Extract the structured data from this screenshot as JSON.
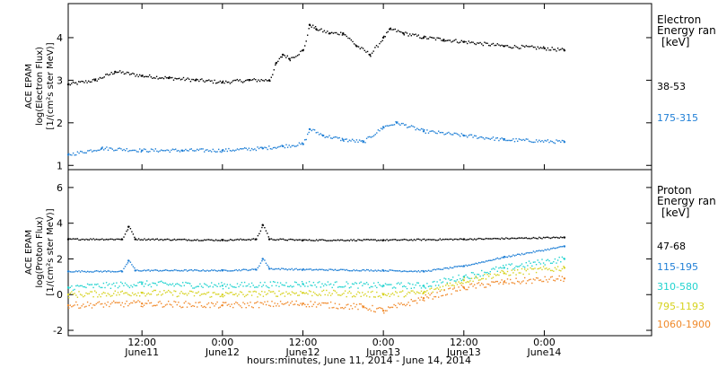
{
  "time_axis": {
    "ticks": [
      {
        "time": "12:00",
        "date": "June11"
      },
      {
        "time": "0:00",
        "date": "June12"
      },
      {
        "time": "12:00",
        "date": "June12"
      },
      {
        "time": "0:00",
        "date": "June13"
      },
      {
        "time": "12:00",
        "date": "June13"
      },
      {
        "time": "0:00",
        "date": "June14"
      }
    ],
    "label": "hours:minutes, June 11, 2014 - June 14, 2014"
  },
  "panels": {
    "electron": {
      "ylabel_lines": [
        "ACE EPAM",
        "log(Electron Flux)",
        "[1/(cm²s ster MeV)]"
      ],
      "y_ticks": [
        "4",
        "3",
        "2",
        "1"
      ],
      "legend_title_lines": [
        "Electron",
        "Energy ran",
        "[keV]"
      ],
      "channels": [
        {
          "label": "38-53",
          "color": "#000000"
        },
        {
          "label": "175-315",
          "color": "#1f7fd6"
        }
      ]
    },
    "proton": {
      "ylabel_lines": [
        "ACE EPAM",
        "log(Proton Flux)",
        "[1/(cm²s ster MeV)]"
      ],
      "y_ticks": [
        "6",
        "4",
        "2",
        "0",
        "-2"
      ],
      "legend_title_lines": [
        "Proton",
        "Energy ran",
        "[keV]"
      ],
      "channels": [
        {
          "label": "47-68",
          "color": "#000000"
        },
        {
          "label": "115-195",
          "color": "#1f7fd6"
        },
        {
          "label": "310-580",
          "color": "#22d3cf"
        },
        {
          "label": "795-1193",
          "color": "#d6d21e"
        },
        {
          "label": "1060-1900",
          "color": "#f0892a"
        }
      ]
    }
  },
  "chart_data": [
    {
      "type": "scatter",
      "ylabel": "ACE EPAM log(Electron Flux) [1/(cm²s ster MeV)]",
      "xlabel": "hours:minutes, June 11, 2014 - June 14, 2014",
      "xlim": [
        "2014-06-11T01:00",
        "2014-06-14T16:00"
      ],
      "ylim": [
        0.9,
        4.8
      ],
      "grid": false,
      "legend_position": "right",
      "series": [
        {
          "name": "38-53",
          "color": "#000000",
          "x": [
            "2014-06-11T01:00",
            "2014-06-11T05:00",
            "2014-06-11T08:00",
            "2014-06-11T12:00",
            "2014-06-11T16:00",
            "2014-06-11T20:00",
            "2014-06-12T00:00",
            "2014-06-12T04:00",
            "2014-06-12T07:00",
            "2014-06-12T08:00",
            "2014-06-12T09:00",
            "2014-06-12T10:00",
            "2014-06-12T12:00",
            "2014-06-12T13:00",
            "2014-06-12T14:00",
            "2014-06-12T16:00",
            "2014-06-12T18:00",
            "2014-06-12T20:00",
            "2014-06-12T22:00",
            "2014-06-13T00:00",
            "2014-06-13T01:00",
            "2014-06-13T03:00",
            "2014-06-13T06:00",
            "2014-06-13T09:00",
            "2014-06-13T12:00",
            "2014-06-13T18:00",
            "2014-06-14T00:00",
            "2014-06-14T03:00"
          ],
          "y": [
            2.9,
            3.0,
            3.2,
            3.1,
            3.05,
            3.0,
            2.95,
            3.0,
            3.0,
            3.4,
            3.6,
            3.5,
            3.7,
            4.3,
            4.2,
            4.1,
            4.1,
            3.8,
            3.6,
            4.0,
            4.2,
            4.1,
            4.0,
            3.95,
            3.9,
            3.8,
            3.75,
            3.7
          ]
        },
        {
          "name": "175-315",
          "color": "#1f7fd6",
          "x": [
            "2014-06-11T01:00",
            "2014-06-11T06:00",
            "2014-06-11T12:00",
            "2014-06-11T18:00",
            "2014-06-12T00:00",
            "2014-06-12T06:00",
            "2014-06-12T09:00",
            "2014-06-12T12:00",
            "2014-06-12T13:00",
            "2014-06-12T15:00",
            "2014-06-12T18:00",
            "2014-06-12T21:00",
            "2014-06-13T00:00",
            "2014-06-13T02:00",
            "2014-06-13T06:00",
            "2014-06-13T12:00",
            "2014-06-13T18:00",
            "2014-06-14T03:00"
          ],
          "y": [
            1.25,
            1.4,
            1.35,
            1.35,
            1.35,
            1.4,
            1.45,
            1.5,
            1.85,
            1.7,
            1.6,
            1.55,
            1.9,
            2.0,
            1.8,
            1.7,
            1.6,
            1.55
          ]
        }
      ]
    },
    {
      "type": "scatter",
      "ylabel": "ACE EPAM log(Proton Flux) [1/(cm²s ster MeV)]",
      "xlabel": "hours:minutes, June 11, 2014 - June 14, 2014",
      "xlim": [
        "2014-06-11T01:00",
        "2014-06-14T16:00"
      ],
      "ylim": [
        -2.3,
        7.0
      ],
      "grid": false,
      "legend_position": "right",
      "series": [
        {
          "name": "47-68",
          "color": "#000000",
          "x": [
            "2014-06-11T01:00",
            "2014-06-11T09:00",
            "2014-06-11T10:00",
            "2014-06-11T11:00",
            "2014-06-12T00:00",
            "2014-06-12T05:00",
            "2014-06-12T06:00",
            "2014-06-12T07:00",
            "2014-06-12T12:00",
            "2014-06-13T00:00",
            "2014-06-13T12:00",
            "2014-06-14T03:00"
          ],
          "y": [
            3.1,
            3.1,
            3.8,
            3.1,
            3.05,
            3.1,
            3.9,
            3.1,
            3.05,
            3.05,
            3.1,
            3.2
          ]
        },
        {
          "name": "115-195",
          "color": "#1f7fd6",
          "x": [
            "2014-06-11T01:00",
            "2014-06-11T09:00",
            "2014-06-11T10:00",
            "2014-06-11T11:00",
            "2014-06-12T00:00",
            "2014-06-12T05:00",
            "2014-06-12T06:00",
            "2014-06-12T07:00",
            "2014-06-12T12:00",
            "2014-06-13T00:00",
            "2014-06-13T06:00",
            "2014-06-13T12:00",
            "2014-06-13T18:00",
            "2014-06-14T03:00"
          ],
          "y": [
            1.3,
            1.3,
            1.9,
            1.35,
            1.35,
            1.4,
            2.0,
            1.45,
            1.4,
            1.35,
            1.3,
            1.6,
            2.1,
            2.7
          ]
        },
        {
          "name": "310-580",
          "color": "#22d3cf",
          "x": [
            "2014-06-11T01:00",
            "2014-06-11T12:00",
            "2014-06-12T00:00",
            "2014-06-12T12:00",
            "2014-06-13T00:00",
            "2014-06-13T06:00",
            "2014-06-13T12:00",
            "2014-06-13T18:00",
            "2014-06-14T03:00"
          ],
          "y": [
            0.4,
            0.6,
            0.5,
            0.6,
            0.5,
            0.5,
            1.0,
            1.5,
            2.0
          ]
        },
        {
          "name": "795-1193",
          "color": "#d6d21e",
          "x": [
            "2014-06-11T01:00",
            "2014-06-11T12:00",
            "2014-06-12T00:00",
            "2014-06-12T12:00",
            "2014-06-13T00:00",
            "2014-06-13T06:00",
            "2014-06-13T12:00",
            "2014-06-13T18:00",
            "2014-06-14T03:00"
          ],
          "y": [
            0.0,
            0.1,
            0.0,
            0.1,
            0.0,
            0.1,
            0.8,
            1.2,
            1.5
          ]
        },
        {
          "name": "1060-1900",
          "color": "#f0892a",
          "x": [
            "2014-06-11T01:00",
            "2014-06-11T12:00",
            "2014-06-12T00:00",
            "2014-06-12T12:00",
            "2014-06-12T21:00",
            "2014-06-13T00:00",
            "2014-06-13T06:00",
            "2014-06-13T12:00",
            "2014-06-13T18:00",
            "2014-06-14T03:00"
          ],
          "y": [
            -0.6,
            -0.5,
            -0.6,
            -0.5,
            -0.7,
            -0.9,
            -0.2,
            0.4,
            0.7,
            0.9
          ]
        }
      ]
    }
  ]
}
